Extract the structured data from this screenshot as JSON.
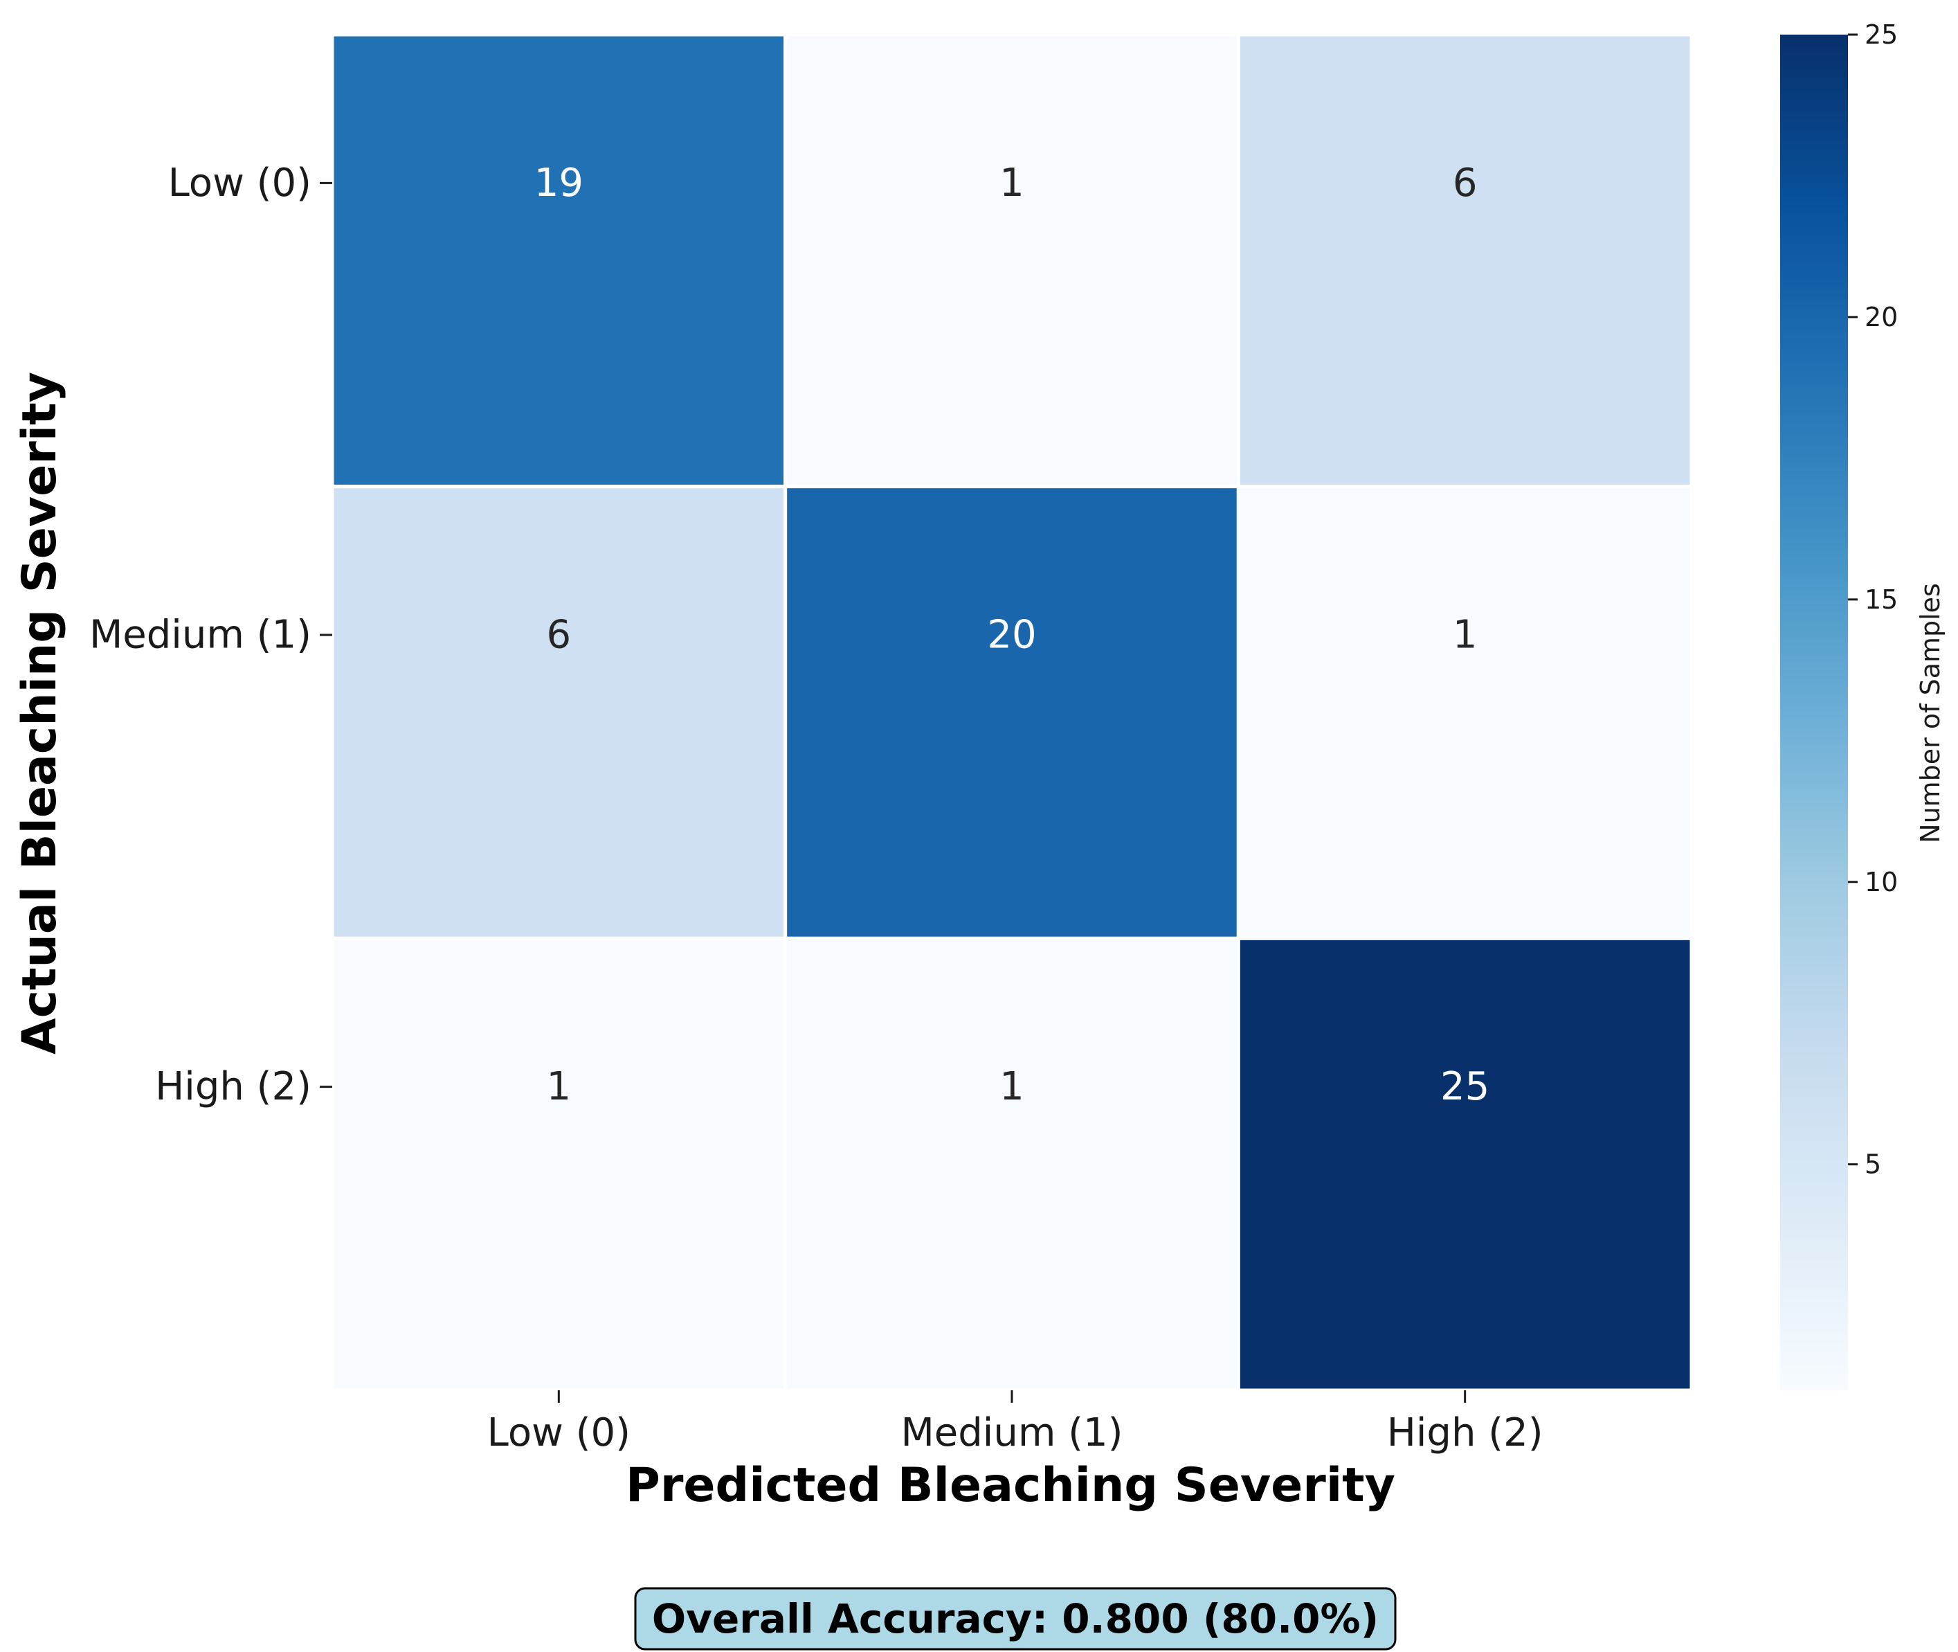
{
  "chart_data": {
    "type": "heatmap",
    "x_categories": [
      "Low (0)",
      "Medium (1)",
      "High (2)"
    ],
    "y_categories": [
      "Low (0)",
      "Medium (1)",
      "High (2)"
    ],
    "values": [
      [
        19,
        1,
        6
      ],
      [
        6,
        20,
        1
      ],
      [
        1,
        1,
        25
      ]
    ],
    "xlabel": "Predicted Bleaching Severity",
    "ylabel": "Actual Bleaching Severity",
    "colorbar": {
      "label": "Number of Samples",
      "range": [
        1,
        25
      ],
      "ticks": [
        5,
        10,
        15,
        20,
        25
      ],
      "colormap": "Blues"
    },
    "annotation": "Overall Accuracy: 0.800 (80.0%)"
  },
  "colors": {
    "low": "#f7fbff",
    "high": "#08306b",
    "annotation_box_fill": "#add8e6",
    "annotation_box_border": "#000000"
  }
}
